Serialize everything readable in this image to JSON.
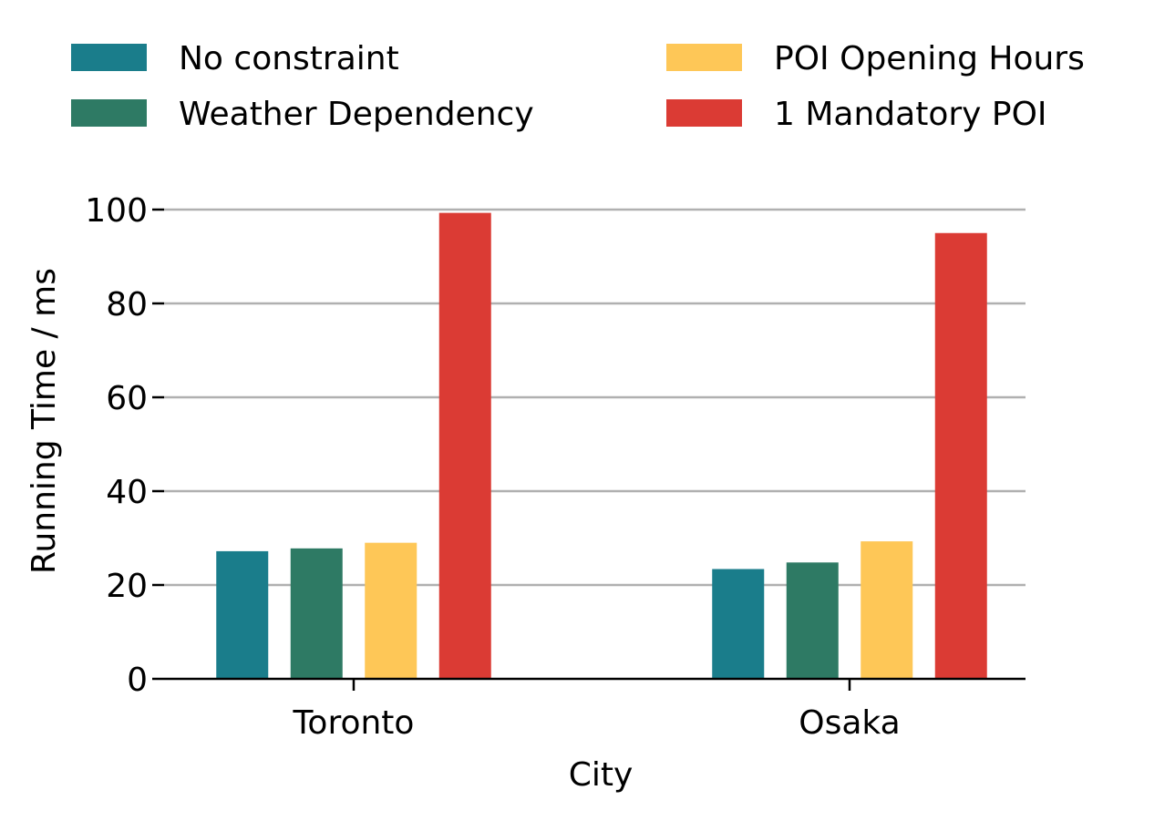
{
  "chart_data": {
    "type": "bar",
    "categories": [
      "Toronto",
      "Osaka"
    ],
    "series": [
      {
        "name": "No constraint",
        "color": "#1a7d8b",
        "values": [
          27.2,
          23.4
        ]
      },
      {
        "name": "Weather Dependency",
        "color": "#2e7a64",
        "values": [
          27.8,
          24.8
        ]
      },
      {
        "name": "POI Opening Hours",
        "color": "#fec757",
        "values": [
          29.0,
          29.3
        ]
      },
      {
        "name": "1 Mandatory POI",
        "color": "#db3b34",
        "values": [
          99.3,
          95.0
        ]
      }
    ],
    "xlabel": "City",
    "ylabel": "Running Time / ms",
    "ylim": [
      0,
      100
    ],
    "yticks": [
      0,
      20,
      40,
      60,
      80,
      100
    ],
    "grid": "horizontal",
    "legend_position": "top"
  }
}
